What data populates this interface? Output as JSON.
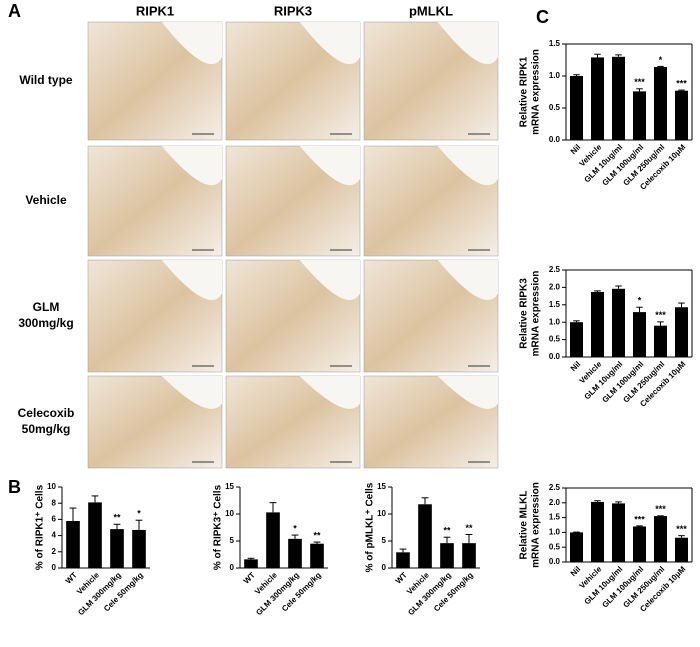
{
  "panels": {
    "a": "A",
    "b": "B",
    "c": "C"
  },
  "panel_a": {
    "columns": [
      "RIPK1",
      "RIPK3",
      "pMLKL"
    ],
    "rows": [
      [
        "Wild type"
      ],
      [
        "Vehicle"
      ],
      [
        "GLM",
        "300mg/kg"
      ],
      [
        "Celecoxib",
        "50mg/kg"
      ]
    ]
  },
  "chart_data": [
    {
      "type": "bar",
      "ylabel": [
        "% of RIPK1⁺ Cells"
      ],
      "categories": [
        "WT",
        "Vehicle",
        "GLM 300mg/kg",
        "Cele 50mg/kg"
      ],
      "values": [
        5.8,
        8.1,
        4.8,
        4.7
      ],
      "errors": [
        1.6,
        0.8,
        0.6,
        1.2
      ],
      "significance": [
        null,
        null,
        "**",
        "*"
      ],
      "color": "#000000",
      "ylim": [
        0,
        10
      ],
      "yticks": [
        0,
        2,
        4,
        6,
        8,
        10
      ],
      "boxed": false
    },
    {
      "type": "bar",
      "ylabel": [
        "% of RIPK3⁺ Cells"
      ],
      "categories": [
        "WT",
        "Vehicle",
        "GLM 300mg/kg",
        "Cele 50mg/kg"
      ],
      "values": [
        1.6,
        10.3,
        5.4,
        4.5
      ],
      "errors": [
        0.2,
        1.8,
        0.7,
        0.3
      ],
      "significance": [
        null,
        null,
        "*",
        "**"
      ],
      "color": "#000000",
      "ylim": [
        0,
        15
      ],
      "yticks": [
        0,
        5,
        10,
        15
      ],
      "boxed": false
    },
    {
      "type": "bar",
      "ylabel": [
        "% of pMLKL⁺ Cells"
      ],
      "categories": [
        "WT",
        "Vehicle",
        "GLM 300mg/kg",
        "Cele 50mg/kg"
      ],
      "values": [
        2.9,
        11.8,
        4.6,
        4.6
      ],
      "errors": [
        0.6,
        1.2,
        1.1,
        1.6
      ],
      "significance": [
        null,
        null,
        "**",
        "**"
      ],
      "color": "#000000",
      "ylim": [
        0,
        15
      ],
      "yticks": [
        0,
        5,
        10,
        15
      ],
      "boxed": false
    },
    {
      "type": "bar",
      "ylabel": [
        "Relative RIPK1",
        "mRNA expression"
      ],
      "categories": [
        "Nil",
        "Vehicle",
        "GLM 10ug/ml",
        "GLM 100ug/ml",
        "GLM 250ug/ml",
        "Celecoxib 10μM"
      ],
      "values": [
        1.0,
        1.29,
        1.3,
        0.76,
        1.14,
        0.77
      ],
      "errors": [
        0.02,
        0.05,
        0.03,
        0.04,
        0.01,
        0.01
      ],
      "significance": [
        null,
        null,
        null,
        "***",
        "*",
        "***"
      ],
      "color": "#000000",
      "ylim": [
        0,
        1.5
      ],
      "yticks": [
        {
          "value": 0,
          "label": "0.0"
        },
        0.5,
        {
          "value": 1,
          "label": "1.0"
        },
        1.5
      ],
      "boxed": true
    },
    {
      "type": "bar",
      "ylabel": [
        "Relative RIPK3",
        "mRNA expression"
      ],
      "categories": [
        "Nil",
        "Vehicle",
        "GLM 10ug/ml",
        "GLM 100ug/ml",
        "GLM 250ug/ml",
        "Celecoxib 10μM"
      ],
      "values": [
        1.0,
        1.87,
        1.96,
        1.29,
        0.9,
        1.43
      ],
      "errors": [
        0.04,
        0.03,
        0.08,
        0.14,
        0.11,
        0.12
      ],
      "significance": [
        null,
        null,
        null,
        "*",
        "***",
        null
      ],
      "color": "#000000",
      "ylim": [
        0,
        2.5
      ],
      "yticks": [
        {
          "value": 0,
          "label": "0.0"
        },
        0.5,
        {
          "value": 1,
          "label": "1.0"
        },
        1.5,
        {
          "value": 2,
          "label": "2.0"
        },
        2.5
      ],
      "boxed": true
    },
    {
      "type": "bar",
      "ylabel": [
        "Relative MLKL",
        "mRNA expression"
      ],
      "categories": [
        "Nil",
        "Vehicle",
        "GLM 10ug/ml",
        "GLM 100ug/ml",
        "GLM 250ug/ml",
        "Celecoxib 10μM"
      ],
      "values": [
        1.0,
        2.03,
        1.98,
        1.2,
        1.55,
        0.82
      ],
      "errors": [
        0.01,
        0.04,
        0.05,
        0.02,
        0.01,
        0.07
      ],
      "significance": [
        null,
        null,
        null,
        "***",
        "***",
        "***"
      ],
      "color": "#000000",
      "ylim": [
        0,
        2.5
      ],
      "yticks": [
        {
          "value": 0,
          "label": "0.0"
        },
        0.5,
        {
          "value": 1,
          "label": "1.0"
        },
        1.5,
        {
          "value": 2,
          "label": "2.0"
        },
        2.5
      ],
      "boxed": true
    }
  ]
}
